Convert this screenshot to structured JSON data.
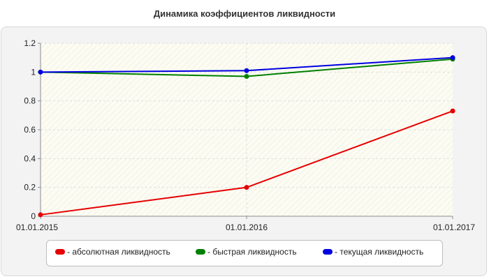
{
  "chart_data": {
    "type": "line",
    "title": "Динамика коэффициентов ликвидности",
    "xlabel": "",
    "ylabel": "",
    "categories": [
      "01.01.2015",
      "01.01.2016",
      "01.01.2017"
    ],
    "ylim": [
      0,
      1.2
    ],
    "yticks": [
      "0",
      "0.2",
      "0.4",
      "0.6",
      "0.8",
      "1",
      "1.2"
    ],
    "grid": true,
    "legend_position": "bottom",
    "series": [
      {
        "name": "- абсолютная ликвидность",
        "color": "#e60000",
        "values": [
          0.01,
          0.2,
          0.73
        ]
      },
      {
        "name": "- быстрая ликвидность",
        "color": "#008000",
        "values": [
          1.0,
          0.97,
          1.09
        ]
      },
      {
        "name": "- текущая ликвидность",
        "color": "#0000e0",
        "values": [
          1.0,
          1.01,
          1.1
        ]
      }
    ]
  }
}
